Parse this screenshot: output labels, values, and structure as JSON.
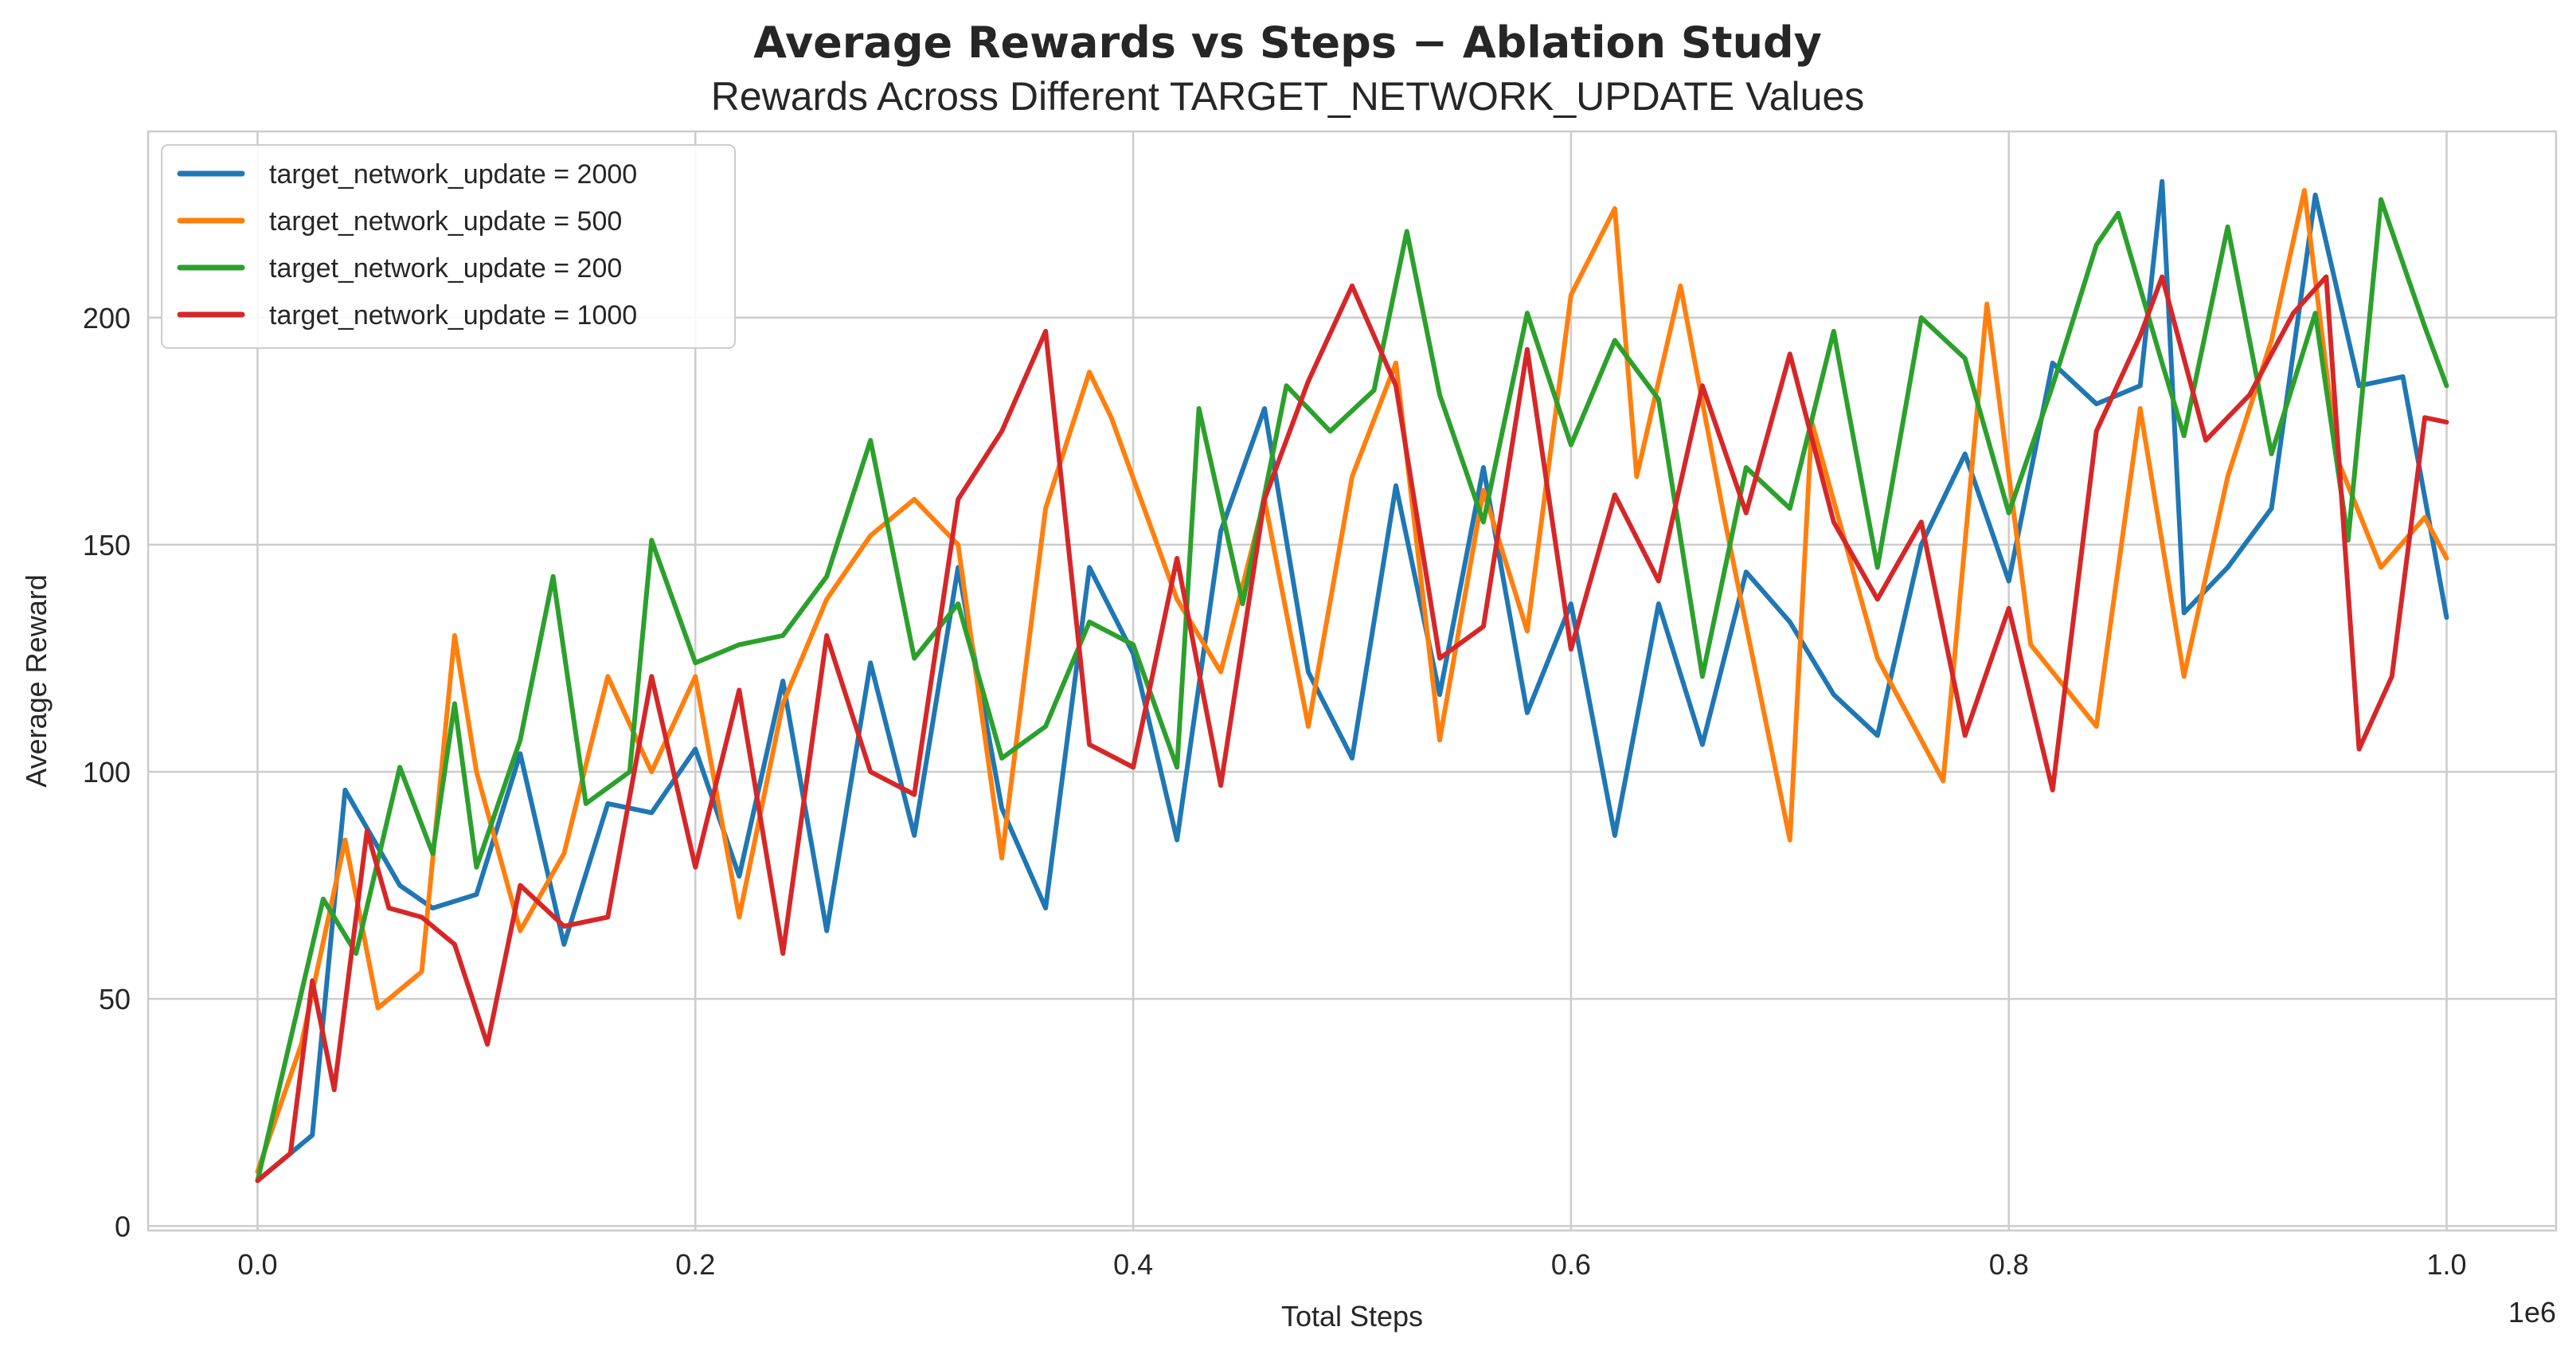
{
  "chart_data": {
    "type": "line",
    "title": "Average Rewards vs Steps − Ablation Study",
    "subtitle": "Rewards Across Different TARGET_NETWORK_UPDATE Values",
    "xlabel": "Total Steps",
    "ylabel": "Average Reward",
    "x_offset_label": "1e6",
    "xlim": [
      -0.05,
      1.05
    ],
    "ylim": [
      -1,
      241
    ],
    "x_ticks": [
      0.0,
      0.2,
      0.4,
      0.6,
      0.8,
      1.0
    ],
    "x_tick_labels": [
      "0.0",
      "0.2",
      "0.4",
      "0.6",
      "0.8",
      "1.0"
    ],
    "y_ticks": [
      0,
      50,
      100,
      150,
      200
    ],
    "y_tick_labels": [
      "0",
      "50",
      "100",
      "150",
      "200"
    ],
    "grid": true,
    "legend_position": "top-left",
    "series": [
      {
        "name": "target_network_update = 2000",
        "color": "#1f77b4",
        "x": [
          0.0,
          0.025,
          0.04,
          0.065,
          0.08,
          0.1,
          0.12,
          0.14,
          0.16,
          0.18,
          0.2,
          0.22,
          0.24,
          0.26,
          0.28,
          0.3,
          0.32,
          0.34,
          0.36,
          0.38,
          0.4,
          0.42,
          0.44,
          0.46,
          0.48,
          0.5,
          0.52,
          0.54,
          0.56,
          0.58,
          0.6,
          0.62,
          0.64,
          0.66,
          0.68,
          0.7,
          0.72,
          0.74,
          0.76,
          0.78,
          0.8,
          0.82,
          0.84,
          0.86,
          0.87,
          0.88,
          0.9,
          0.92,
          0.94,
          0.96,
          0.98,
          1.0
        ],
        "y": [
          10,
          20,
          96,
          75,
          70,
          73,
          104,
          62,
          93,
          91,
          105,
          77,
          120,
          65,
          124,
          86,
          145,
          92,
          70,
          145,
          126,
          85,
          153,
          180,
          122,
          103,
          163,
          117,
          167,
          113,
          137,
          86,
          137,
          106,
          144,
          133,
          117,
          108,
          150,
          170,
          142,
          190,
          181,
          185,
          230,
          135,
          145,
          158,
          227,
          185,
          187,
          134
        ]
      },
      {
        "name": "target_network_update = 500",
        "color": "#ff7f0e",
        "x": [
          0.0,
          0.02,
          0.04,
          0.055,
          0.075,
          0.09,
          0.1,
          0.12,
          0.14,
          0.16,
          0.18,
          0.2,
          0.22,
          0.24,
          0.26,
          0.28,
          0.3,
          0.32,
          0.34,
          0.36,
          0.38,
          0.39,
          0.42,
          0.44,
          0.46,
          0.48,
          0.5,
          0.52,
          0.54,
          0.56,
          0.58,
          0.6,
          0.62,
          0.63,
          0.65,
          0.67,
          0.7,
          0.71,
          0.74,
          0.77,
          0.79,
          0.81,
          0.84,
          0.86,
          0.88,
          0.9,
          0.92,
          0.935,
          0.95,
          0.97,
          0.99,
          1.0
        ],
        "y": [
          12,
          40,
          85,
          48,
          56,
          130,
          100,
          65,
          82,
          121,
          100,
          121,
          68,
          115,
          138,
          152,
          160,
          150,
          81,
          158,
          188,
          178,
          138,
          122,
          160,
          110,
          165,
          190,
          107,
          162,
          131,
          205,
          224,
          165,
          207,
          156,
          85,
          177,
          125,
          98,
          203,
          128,
          110,
          180,
          121,
          165,
          195,
          228,
          169,
          145,
          156,
          147
        ]
      },
      {
        "name": "target_network_update = 200",
        "color": "#2ca02c",
        "x": [
          0.0,
          0.015,
          0.03,
          0.045,
          0.065,
          0.08,
          0.09,
          0.1,
          0.12,
          0.135,
          0.15,
          0.17,
          0.18,
          0.2,
          0.22,
          0.24,
          0.26,
          0.28,
          0.3,
          0.32,
          0.34,
          0.36,
          0.38,
          0.4,
          0.42,
          0.43,
          0.45,
          0.47,
          0.49,
          0.51,
          0.525,
          0.54,
          0.56,
          0.58,
          0.6,
          0.62,
          0.64,
          0.66,
          0.68,
          0.7,
          0.72,
          0.74,
          0.76,
          0.78,
          0.8,
          0.82,
          0.84,
          0.85,
          0.87,
          0.88,
          0.9,
          0.92,
          0.94,
          0.955,
          0.97,
          0.99,
          1.0
        ],
        "y": [
          10,
          41,
          72,
          60,
          101,
          82,
          115,
          79,
          107,
          143,
          93,
          100,
          151,
          124,
          128,
          130,
          143,
          173,
          125,
          137,
          103,
          110,
          133,
          128,
          101,
          180,
          137,
          185,
          175,
          184,
          219,
          183,
          155,
          201,
          172,
          195,
          182,
          121,
          167,
          158,
          197,
          145,
          200,
          191,
          157,
          185,
          216,
          223,
          190,
          174,
          220,
          170,
          201,
          151,
          226,
          198,
          185
        ]
      },
      {
        "name": "target_network_update = 1000",
        "color": "#d62728",
        "x": [
          0.0,
          0.015,
          0.025,
          0.035,
          0.05,
          0.06,
          0.075,
          0.09,
          0.105,
          0.12,
          0.14,
          0.16,
          0.18,
          0.2,
          0.22,
          0.24,
          0.26,
          0.28,
          0.3,
          0.32,
          0.34,
          0.36,
          0.38,
          0.4,
          0.42,
          0.44,
          0.46,
          0.48,
          0.5,
          0.52,
          0.54,
          0.56,
          0.58,
          0.6,
          0.62,
          0.64,
          0.66,
          0.68,
          0.7,
          0.72,
          0.74,
          0.76,
          0.78,
          0.8,
          0.82,
          0.84,
          0.86,
          0.87,
          0.89,
          0.91,
          0.93,
          0.945,
          0.96,
          0.975,
          0.99,
          1.0
        ],
        "y": [
          10,
          16,
          54,
          30,
          87,
          70,
          68,
          62,
          40,
          75,
          66,
          68,
          121,
          79,
          118,
          60,
          130,
          100,
          95,
          160,
          175,
          197,
          106,
          101,
          147,
          97,
          160,
          186,
          207,
          185,
          125,
          132,
          193,
          127,
          161,
          142,
          185,
          157,
          192,
          155,
          138,
          155,
          108,
          136,
          96,
          175,
          196,
          209,
          173,
          183,
          201,
          209,
          105,
          121,
          178,
          177
        ]
      }
    ]
  }
}
